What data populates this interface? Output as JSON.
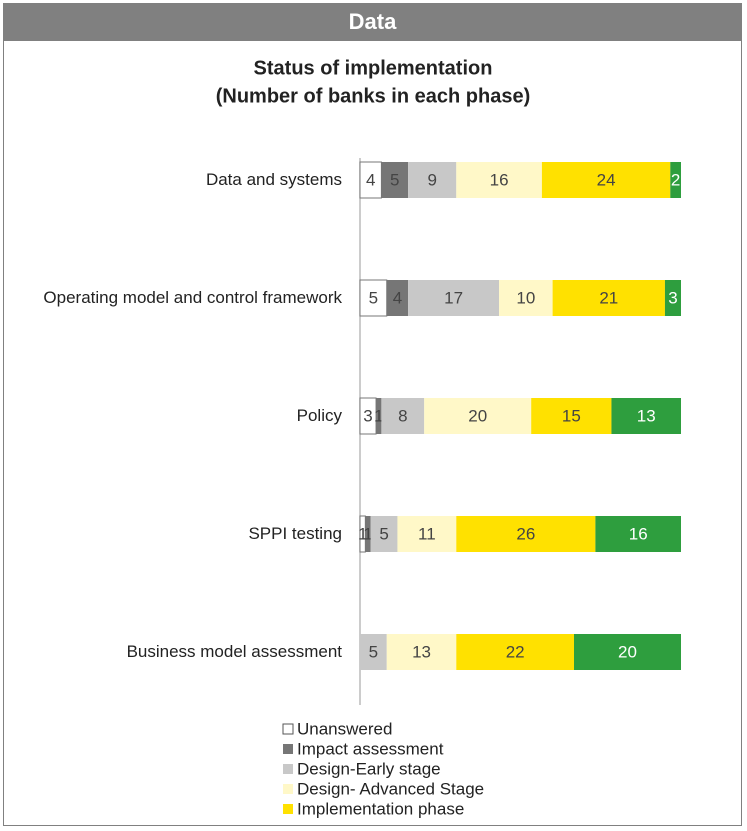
{
  "header": {
    "title": "Data"
  },
  "chart_data": {
    "type": "stacked-bar-horizontal",
    "title": "Status of implementation",
    "subtitle": "(Number of banks in each phase)",
    "categories": [
      "Data and systems",
      "Operating model and control framework",
      "Policy",
      "SPPI testing",
      "Business model assessment"
    ],
    "series": [
      {
        "name": "Unanswered",
        "color": "#ffffff",
        "values": [
          4,
          5,
          3,
          1,
          null
        ]
      },
      {
        "name": "Impact assessment",
        "color": "#767676",
        "values": [
          5,
          4,
          1,
          1,
          null
        ]
      },
      {
        "name": "Design-Early stage",
        "color": "#c8c8c8",
        "values": [
          9,
          17,
          8,
          5,
          5
        ]
      },
      {
        "name": "Design- Advanced Stage",
        "color": "#fff8c8",
        "values": [
          16,
          10,
          20,
          11,
          13
        ]
      },
      {
        "name": "Implementation phase",
        "color": "#ffe100",
        "values": [
          24,
          21,
          15,
          26,
          22
        ]
      },
      {
        "name": null,
        "color": "#2e9e3e",
        "values": [
          2,
          3,
          13,
          16,
          20
        ]
      }
    ]
  }
}
